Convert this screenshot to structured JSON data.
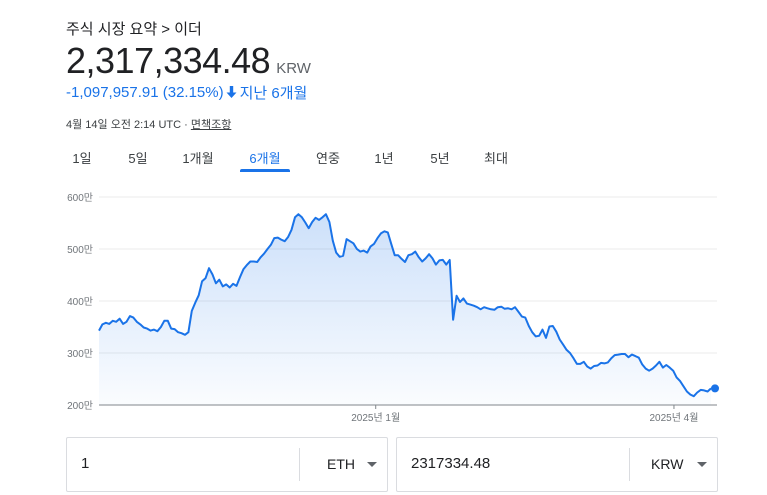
{
  "breadcrumb": "주식 시장 요약 > 이더",
  "price": "2,317,334.48",
  "currency": "KRW",
  "change": "-1,097,957.91 (32.15%)",
  "change_period": "지난 6개월",
  "timestamp": "4월 14일 오전 2:14 UTC · ",
  "disclaimer": "면책조항",
  "tabs": [
    {
      "label": "1일"
    },
    {
      "label": "5일"
    },
    {
      "label": "1개월"
    },
    {
      "label": "6개월",
      "active": true
    },
    {
      "label": "연중"
    },
    {
      "label": "1년"
    },
    {
      "label": "5년"
    },
    {
      "label": "최대"
    }
  ],
  "colors": {
    "accent": "#1a73e8",
    "line": "#1a73e8"
  },
  "chart_data": {
    "type": "area",
    "y_ticks": [
      "600만",
      "500만",
      "400만",
      "300만",
      "200만"
    ],
    "y_tick_values": [
      600,
      500,
      400,
      300,
      200
    ],
    "ylim": [
      200,
      600
    ],
    "x_ticks": [
      "2025년 1월",
      "2025년 4월"
    ],
    "x_tick_positions": [
      90,
      187
    ],
    "x_range": [
      0,
      201
    ],
    "ylabel": "",
    "xlabel": "",
    "unit": "만 KRW",
    "values": [
      343,
      355,
      358,
      356,
      362,
      360,
      366,
      356,
      360,
      371,
      368,
      360,
      355,
      349,
      347,
      343,
      345,
      342,
      350,
      362,
      362,
      347,
      346,
      340,
      338,
      335,
      340,
      381,
      397,
      411,
      438,
      444,
      463,
      451,
      434,
      441,
      428,
      432,
      426,
      433,
      429,
      446,
      461,
      469,
      476,
      476,
      475,
      484,
      491,
      500,
      508,
      521,
      522,
      518,
      515,
      523,
      537,
      561,
      567,
      561,
      551,
      540,
      552,
      560,
      556,
      561,
      567,
      552,
      516,
      493,
      485,
      487,
      519,
      515,
      511,
      500,
      495,
      497,
      493,
      505,
      510,
      521,
      530,
      534,
      532,
      510,
      488,
      488,
      481,
      475,
      488,
      490,
      495,
      484,
      476,
      482,
      490,
      482,
      470,
      478,
      479,
      470,
      479,
      364,
      410,
      398,
      405,
      395,
      393,
      391,
      388,
      384,
      388,
      386,
      384,
      383,
      388,
      389,
      385,
      386,
      384,
      388,
      379,
      370,
      368,
      352,
      340,
      332,
      333,
      345,
      329,
      351,
      352,
      341,
      326,
      316,
      306,
      300,
      290,
      279,
      279,
      283,
      274,
      270,
      275,
      276,
      281,
      280,
      282,
      290,
      296,
      297,
      298,
      298,
      292,
      297,
      294,
      291,
      278,
      270,
      266,
      270,
      276,
      283,
      272,
      277,
      272,
      266,
      253,
      246,
      236,
      226,
      220,
      217,
      224,
      229,
      228,
      226,
      232
    ]
  },
  "converter": {
    "from_value": "1",
    "from_currency": "ETH",
    "to_value": "2317334.48",
    "to_currency": "KRW"
  }
}
